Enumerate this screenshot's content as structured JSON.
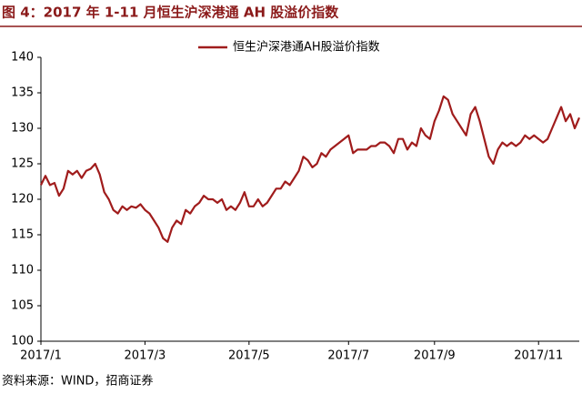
{
  "chart_data": {
    "type": "line",
    "title": "图 4：2017 年 1-11 月恒生沪深港通 AH 股溢价指数",
    "source": "资料来源：WIND，招商证券",
    "categories": [
      "2017/1",
      null,
      null,
      null,
      null,
      null,
      null,
      null,
      null,
      null,
      null,
      null,
      null,
      null,
      null,
      null,
      null,
      null,
      null,
      null,
      null,
      null,
      null,
      "2017/3",
      null,
      null,
      null,
      null,
      null,
      null,
      null,
      null,
      null,
      null,
      null,
      null,
      null,
      null,
      null,
      null,
      null,
      null,
      null,
      null,
      null,
      null,
      "2017/5",
      null,
      null,
      null,
      null,
      null,
      null,
      null,
      null,
      null,
      null,
      null,
      null,
      null,
      null,
      null,
      null,
      null,
      null,
      null,
      null,
      null,
      "2017/7",
      null,
      null,
      null,
      null,
      null,
      null,
      null,
      null,
      null,
      null,
      null,
      null,
      null,
      null,
      null,
      null,
      null,
      null,
      "2017/9",
      null,
      null,
      null,
      null,
      null,
      null,
      null,
      null,
      null,
      null,
      null,
      null,
      null,
      null,
      null,
      null,
      null,
      null,
      null,
      null,
      null,
      null,
      "2017/11",
      null,
      null,
      null,
      null,
      null,
      null,
      null,
      null,
      null
    ],
    "series": [
      {
        "name": "恒生沪深港通AH股溢价指数",
        "color": "#a01c1c",
        "values": [
          122,
          123.3,
          122,
          122.3,
          120.5,
          121.5,
          124,
          123.5,
          124,
          123,
          124,
          124.3,
          125,
          123.5,
          121,
          120,
          118.5,
          118,
          119,
          118.5,
          119,
          118.8,
          119.3,
          118.5,
          118,
          117,
          116,
          114.5,
          114,
          116,
          117,
          116.5,
          118.5,
          118,
          119,
          119.5,
          120.5,
          120,
          120,
          119.5,
          120,
          118.5,
          119,
          118.5,
          119.5,
          121,
          119,
          119,
          120,
          119,
          119.5,
          120.5,
          121.5,
          121.5,
          122.5,
          122,
          123,
          124,
          126,
          125.5,
          124.5,
          125,
          126.5,
          126,
          127,
          127.5,
          128,
          128.5,
          129,
          126.5,
          127,
          127,
          127,
          127.5,
          127.5,
          128,
          128,
          127.5,
          126.5,
          128.5,
          128.5,
          127,
          128,
          127.5,
          130,
          129,
          128.5,
          131,
          132.5,
          134.5,
          134,
          132,
          131,
          130,
          129,
          132,
          133,
          131,
          128.5,
          126,
          125,
          127,
          128,
          127.5,
          128,
          127.5,
          128,
          129,
          128.5,
          129,
          128.5,
          128,
          128.5,
          130,
          131.5,
          133,
          131,
          132,
          130,
          131.5
        ]
      }
    ],
    "ylim": [
      100,
      140
    ],
    "yticks": [
      100,
      105,
      110,
      115,
      120,
      125,
      130,
      135,
      140
    ],
    "legend": "top"
  }
}
